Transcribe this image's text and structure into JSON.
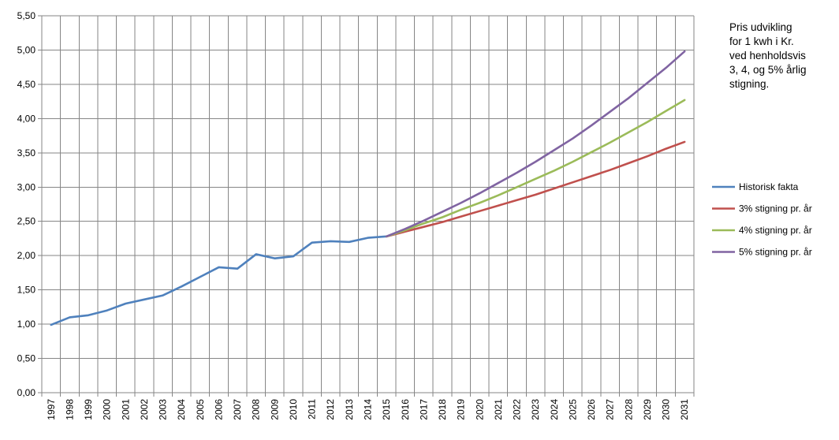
{
  "chart_data": {
    "type": "line",
    "title": "",
    "xlabel": "",
    "ylabel": "",
    "x": [
      "1997",
      "1998",
      "1999",
      "2000",
      "2001",
      "2002",
      "2003",
      "2004",
      "2005",
      "2006",
      "2007",
      "2008",
      "2009",
      "2010",
      "2011",
      "2012",
      "2013",
      "2014",
      "2015",
      "2016",
      "2017",
      "2018",
      "2019",
      "2020",
      "2021",
      "2022",
      "2023",
      "2024",
      "2025",
      "2026",
      "2027",
      "2028",
      "2029",
      "2030",
      "2031"
    ],
    "ylim": [
      0,
      5.5
    ],
    "yticks": [
      "0,00",
      "0,50",
      "1,00",
      "1,50",
      "2,00",
      "2,50",
      "3,00",
      "3,50",
      "4,00",
      "4,50",
      "5,00",
      "5,50"
    ],
    "grid": true,
    "legend_position": "right",
    "annotation": [
      "Pris udvikling",
      "for 1 kwh i Kr.",
      "ved henholdsvis",
      "3, 4, og 5% årlig",
      "stigning."
    ],
    "series": [
      {
        "name": "Historisk fakta",
        "color": "#4F81BD",
        "values": [
          0.99,
          1.1,
          1.13,
          1.2,
          1.3,
          1.36,
          1.42,
          1.55,
          1.69,
          1.83,
          1.81,
          2.02,
          1.96,
          1.99,
          2.19,
          2.21,
          2.2,
          2.26,
          2.28,
          null,
          null,
          null,
          null,
          null,
          null,
          null,
          null,
          null,
          null,
          null,
          null,
          null,
          null,
          null,
          null
        ]
      },
      {
        "name": "3% stigning pr. år",
        "color": "#C0504D",
        "values": [
          null,
          null,
          null,
          null,
          null,
          null,
          null,
          null,
          null,
          null,
          null,
          null,
          null,
          null,
          null,
          null,
          null,
          null,
          2.28,
          2.35,
          2.42,
          2.49,
          2.57,
          2.65,
          2.73,
          2.81,
          2.89,
          2.98,
          3.07,
          3.16,
          3.25,
          3.35,
          3.45,
          3.56,
          3.66
        ]
      },
      {
        "name": "4% stigning pr. år",
        "color": "#9BBB59",
        "values": [
          null,
          null,
          null,
          null,
          null,
          null,
          null,
          null,
          null,
          null,
          null,
          null,
          null,
          null,
          null,
          null,
          null,
          null,
          2.28,
          2.37,
          2.47,
          2.56,
          2.67,
          2.77,
          2.88,
          3.0,
          3.12,
          3.24,
          3.37,
          3.51,
          3.65,
          3.8,
          3.95,
          4.11,
          4.27
        ]
      },
      {
        "name": "5% stigning pr. år",
        "color": "#8064A2",
        "values": [
          null,
          null,
          null,
          null,
          null,
          null,
          null,
          null,
          null,
          null,
          null,
          null,
          null,
          null,
          null,
          null,
          null,
          null,
          2.28,
          2.39,
          2.51,
          2.64,
          2.77,
          2.91,
          3.06,
          3.21,
          3.37,
          3.54,
          3.71,
          3.9,
          4.1,
          4.3,
          4.52,
          4.74,
          4.98
        ]
      }
    ]
  }
}
